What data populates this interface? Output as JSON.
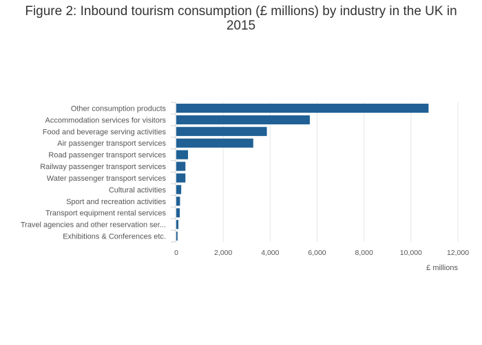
{
  "chart_data": {
    "type": "bar",
    "orientation": "horizontal",
    "title_lines": [
      "Figure 2: Inbound tourism consumption (£ millions) by industry in the UK in",
      "2015"
    ],
    "xlabel": "£ millions",
    "ylabel": "",
    "xlim": [
      0,
      12000
    ],
    "xticks": [
      0,
      2000,
      4000,
      6000,
      8000,
      10000,
      12000
    ],
    "xtick_labels": [
      "0",
      "2,000",
      "4,000",
      "6,000",
      "8,000",
      "10,000",
      "12,000"
    ],
    "grid": "vertical",
    "legend": "none",
    "bar_color": "#206095",
    "categories": [
      "Other consumption products",
      "Accommodation services for visitors",
      "Food and beverage serving activities",
      "Air passenger transport services",
      "Road passenger transport services",
      "Railway passenger transport services",
      "Water passenger transport services",
      "Cultural activities",
      "Sport and recreation activities",
      "Transport equipment rental services",
      "Travel agencies and other reservation ser...",
      "Exhibitions & Conferences etc."
    ],
    "values": [
      10750,
      5690,
      3860,
      3280,
      500,
      390,
      390,
      210,
      160,
      150,
      90,
      55
    ]
  }
}
